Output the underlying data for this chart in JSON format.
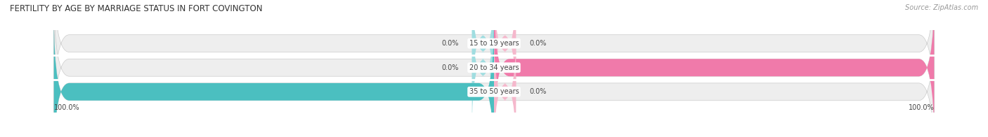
{
  "title": "FERTILITY BY AGE BY MARRIAGE STATUS IN FORT COVINGTON",
  "source": "Source: ZipAtlas.com",
  "categories": [
    "15 to 19 years",
    "20 to 34 years",
    "35 to 50 years"
  ],
  "married_values": [
    0.0,
    0.0,
    100.0
  ],
  "unmarried_values": [
    0.0,
    100.0,
    0.0
  ],
  "married_color": "#4bbfc0",
  "unmarried_color": "#f07aaa",
  "unmarried_small_color": "#f5b8cc",
  "married_small_color": "#a0dde0",
  "bar_bg_color": "#eeeeee",
  "bar_height": 0.72,
  "title_fontsize": 8.5,
  "label_fontsize": 7.0,
  "legend_fontsize": 7.5,
  "source_fontsize": 7.0,
  "category_fontsize": 7.0,
  "background_color": "#ffffff",
  "bar_gap": 0.05
}
